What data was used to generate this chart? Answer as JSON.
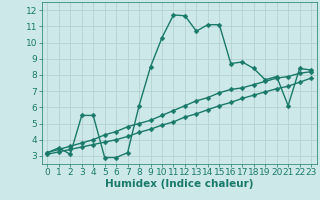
{
  "line1_x": [
    0,
    1,
    2,
    3,
    4,
    5,
    6,
    7,
    8,
    9,
    10,
    11,
    12,
    13,
    14,
    15,
    16,
    17,
    18,
    19,
    20,
    21,
    22,
    23
  ],
  "line1_y": [
    3.2,
    3.5,
    3.1,
    5.5,
    5.5,
    2.9,
    2.9,
    3.2,
    6.1,
    8.5,
    10.3,
    11.7,
    11.65,
    10.7,
    11.1,
    11.1,
    8.7,
    8.8,
    8.4,
    7.7,
    7.9,
    6.1,
    8.4,
    8.3
  ],
  "line2_x": [
    0,
    1,
    2,
    3,
    4,
    5,
    6,
    7,
    8,
    9,
    10,
    11,
    12,
    13,
    14,
    15,
    16,
    17,
    18,
    19,
    20,
    21,
    22,
    23
  ],
  "line2_y": [
    3.2,
    3.4,
    3.6,
    3.8,
    4.0,
    4.3,
    4.5,
    4.8,
    5.0,
    5.2,
    5.5,
    5.8,
    6.1,
    6.4,
    6.6,
    6.9,
    7.1,
    7.2,
    7.4,
    7.6,
    7.8,
    7.9,
    8.1,
    8.2
  ],
  "line3_x": [
    0,
    1,
    2,
    3,
    4,
    5,
    6,
    7,
    8,
    9,
    10,
    11,
    12,
    13,
    14,
    15,
    16,
    17,
    18,
    19,
    20,
    21,
    22,
    23
  ],
  "line3_y": [
    3.1,
    3.25,
    3.4,
    3.55,
    3.7,
    3.85,
    4.0,
    4.2,
    4.45,
    4.65,
    4.9,
    5.1,
    5.4,
    5.6,
    5.85,
    6.1,
    6.3,
    6.55,
    6.75,
    6.95,
    7.15,
    7.3,
    7.55,
    7.8
  ],
  "line_color": "#1a7a6a",
  "bg_color": "#cde8e8",
  "grid_color": "#b0cccc",
  "xlabel": "Humidex (Indice chaleur)",
  "xlim": [
    -0.5,
    23.5
  ],
  "ylim": [
    2.5,
    12.5
  ],
  "yticks": [
    3,
    4,
    5,
    6,
    7,
    8,
    9,
    10,
    11,
    12
  ],
  "xticks": [
    0,
    1,
    2,
    3,
    4,
    5,
    6,
    7,
    8,
    9,
    10,
    11,
    12,
    13,
    14,
    15,
    16,
    17,
    18,
    19,
    20,
    21,
    22,
    23
  ],
  "marker_size": 2.5,
  "line_width": 1.0,
  "font_size": 6.5,
  "label_font_size": 7.5
}
